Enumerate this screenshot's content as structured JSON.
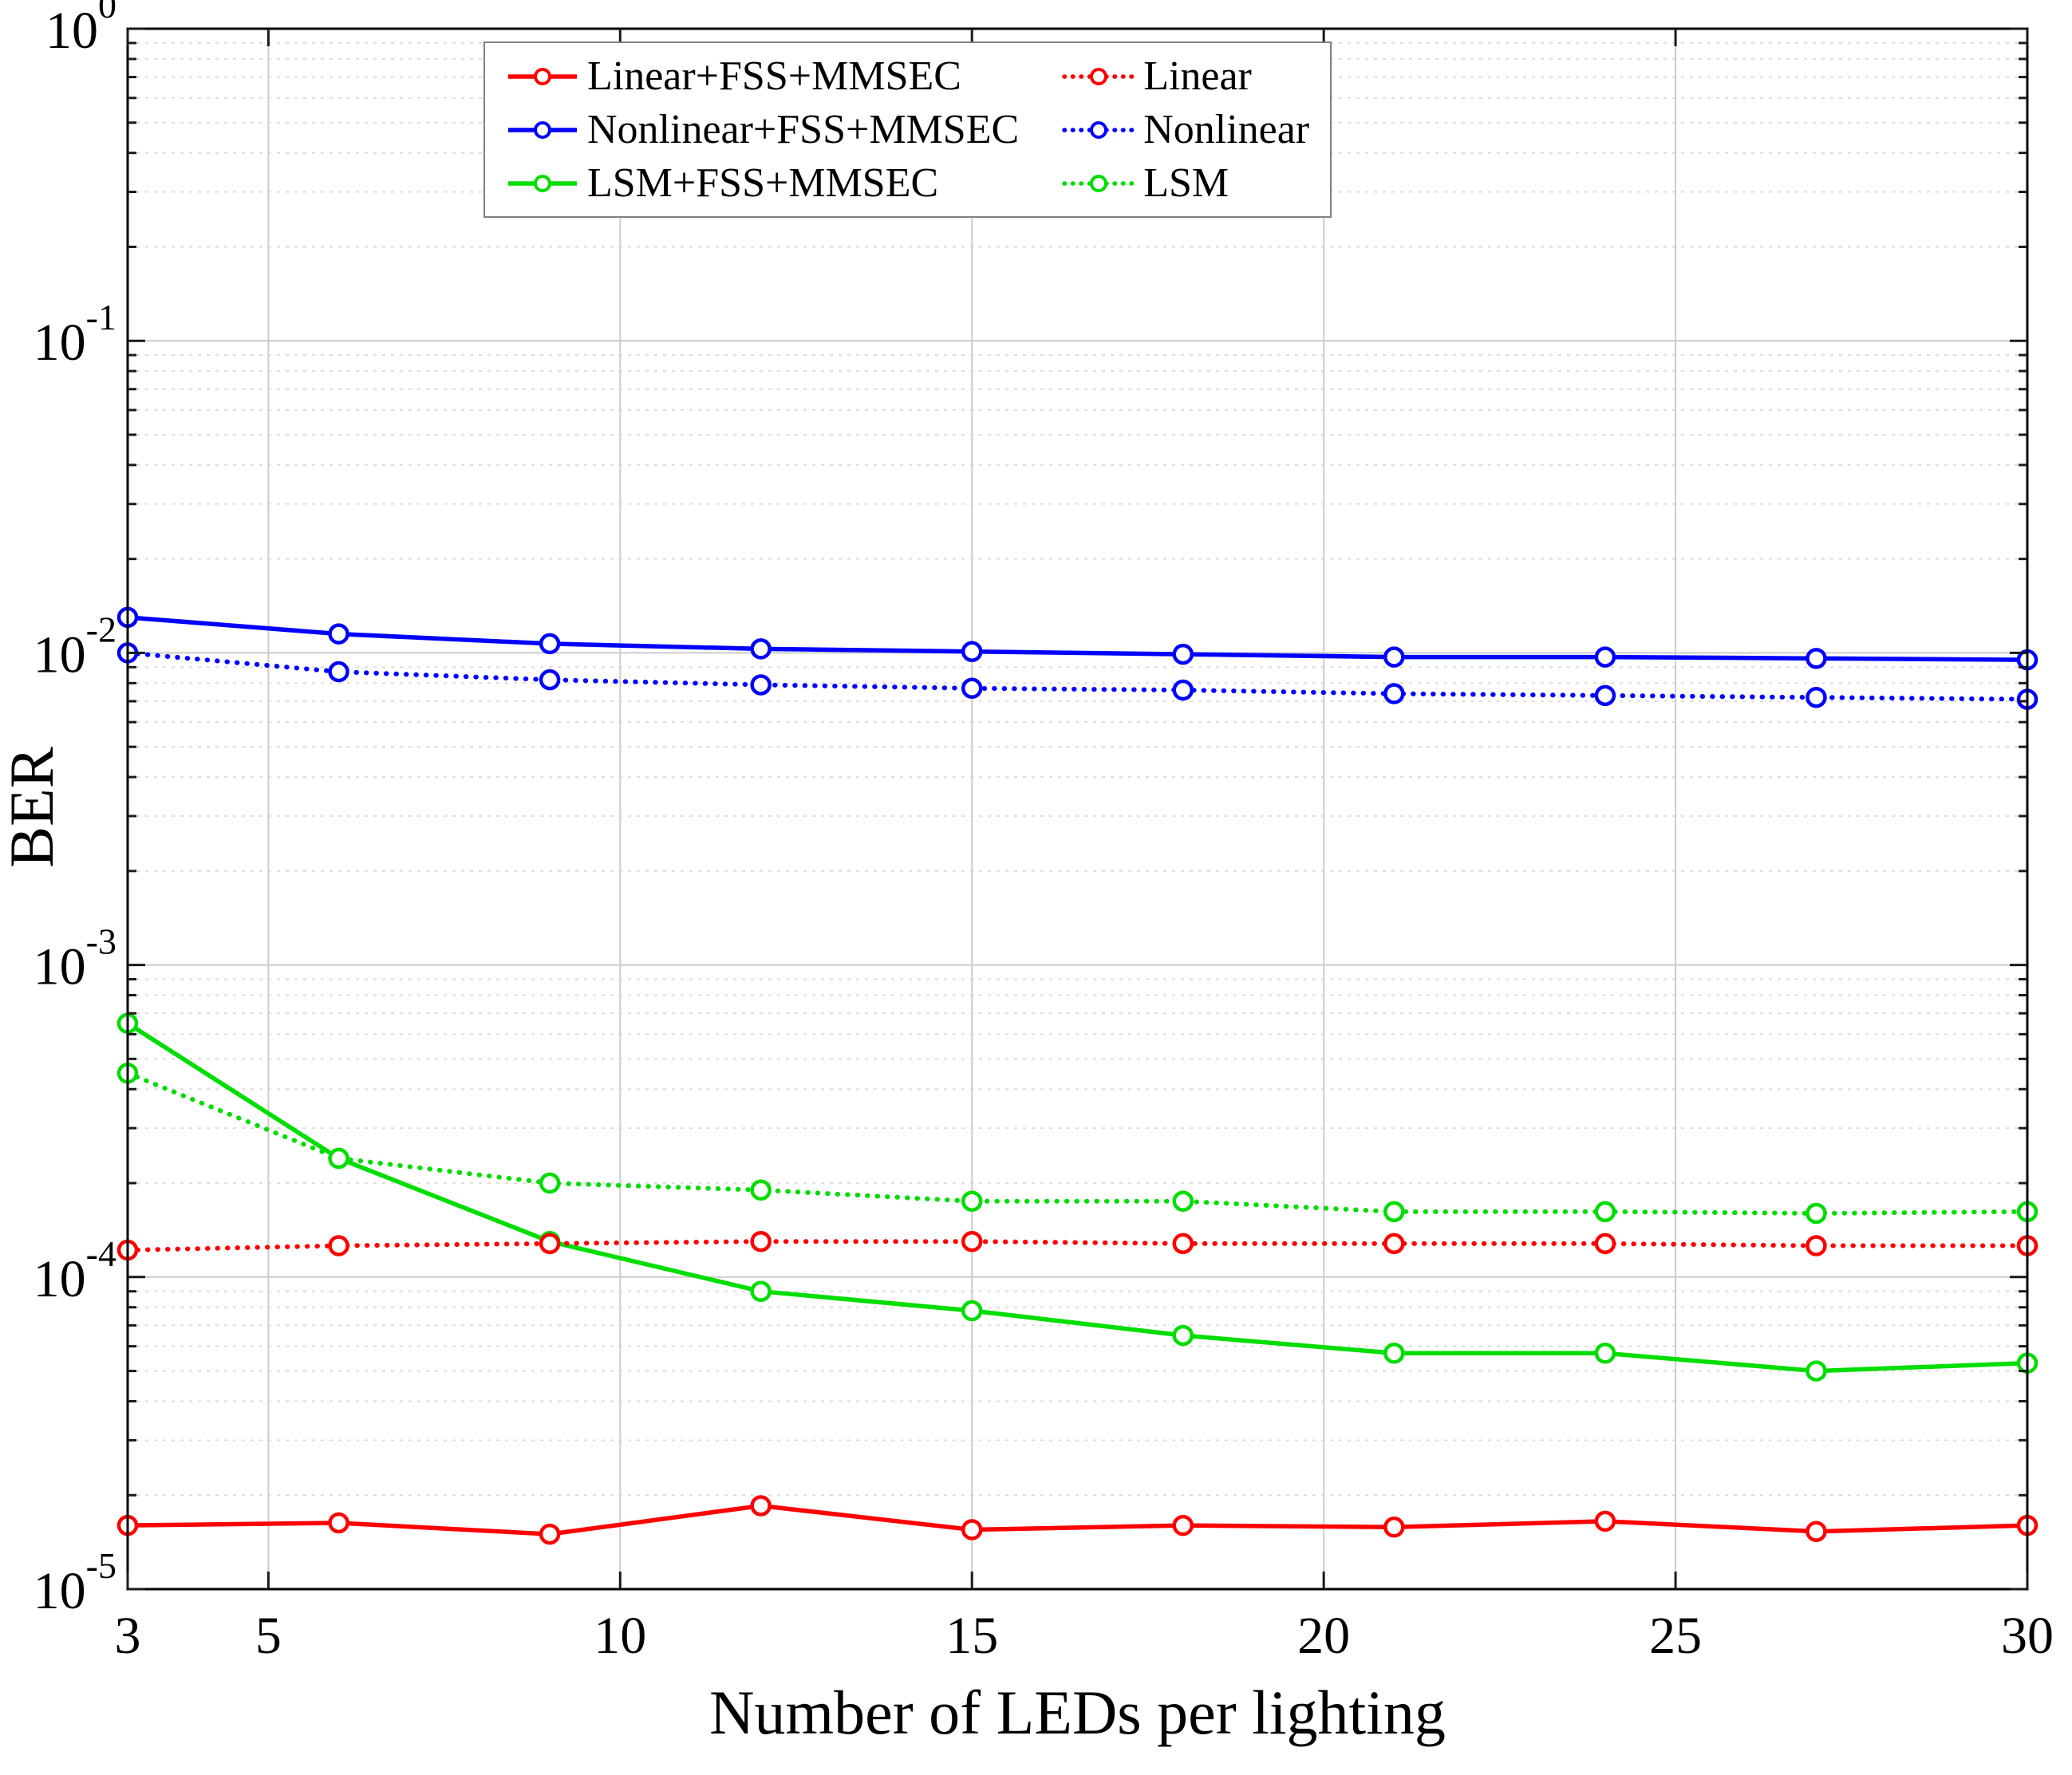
{
  "figure": {
    "background": "#ffffff"
  },
  "chart_data": {
    "type": "line",
    "title": "",
    "xlabel": "Number of LEDs per lighting",
    "ylabel": "BER",
    "yscale": "log",
    "xlim": [
      3,
      30
    ],
    "ylim": [
      1e-05,
      1
    ],
    "xticks": [
      3,
      5,
      10,
      15,
      20,
      25,
      30
    ],
    "ytick_exponents": [
      0,
      -1,
      -2,
      -3,
      -4,
      -5
    ],
    "grid": "on",
    "minor_grid": "on",
    "legend_position": "top-center",
    "legend_columns": 2,
    "x": [
      3,
      6,
      9,
      12,
      15,
      18,
      21,
      24,
      27,
      30
    ],
    "series": [
      {
        "name": "Linear+FSS+MMSEC",
        "color": "#ff0000",
        "style": "solid",
        "marker": "o",
        "values": [
          1.6e-05,
          1.63e-05,
          1.5e-05,
          1.85e-05,
          1.55e-05,
          1.6e-05,
          1.58e-05,
          1.65e-05,
          1.53e-05,
          1.6e-05
        ]
      },
      {
        "name": "Nonlinear+FSS+MMSEC",
        "color": "#0000ff",
        "style": "solid",
        "marker": "o",
        "values": [
          0.013,
          0.0115,
          0.0107,
          0.0103,
          0.0101,
          0.0099,
          0.0097,
          0.0097,
          0.0096,
          0.0095
        ]
      },
      {
        "name": "LSM+FSS+MMSEC",
        "color": "#00dd00",
        "style": "solid",
        "marker": "o",
        "values": [
          0.00065,
          0.00024,
          0.00013,
          9e-05,
          7.8e-05,
          6.5e-05,
          5.7e-05,
          5.7e-05,
          5e-05,
          5.3e-05
        ]
      },
      {
        "name": "Linear",
        "color": "#ff0000",
        "style": "dotted",
        "marker": "o",
        "values": [
          0.000122,
          0.000126,
          0.000128,
          0.00013,
          0.00013,
          0.000128,
          0.000128,
          0.000128,
          0.000126,
          0.000126
        ]
      },
      {
        "name": "Nonlinear",
        "color": "#0000ff",
        "style": "dotted",
        "marker": "o",
        "values": [
          0.01,
          0.0087,
          0.0082,
          0.0079,
          0.0077,
          0.0076,
          0.0074,
          0.0073,
          0.0072,
          0.0071
        ]
      },
      {
        "name": "LSM",
        "color": "#00dd00",
        "style": "dotted",
        "marker": "o",
        "values": [
          0.00045,
          0.00024,
          0.0002,
          0.00019,
          0.000175,
          0.000175,
          0.000162,
          0.000162,
          0.00016,
          0.000162
        ]
      }
    ]
  }
}
